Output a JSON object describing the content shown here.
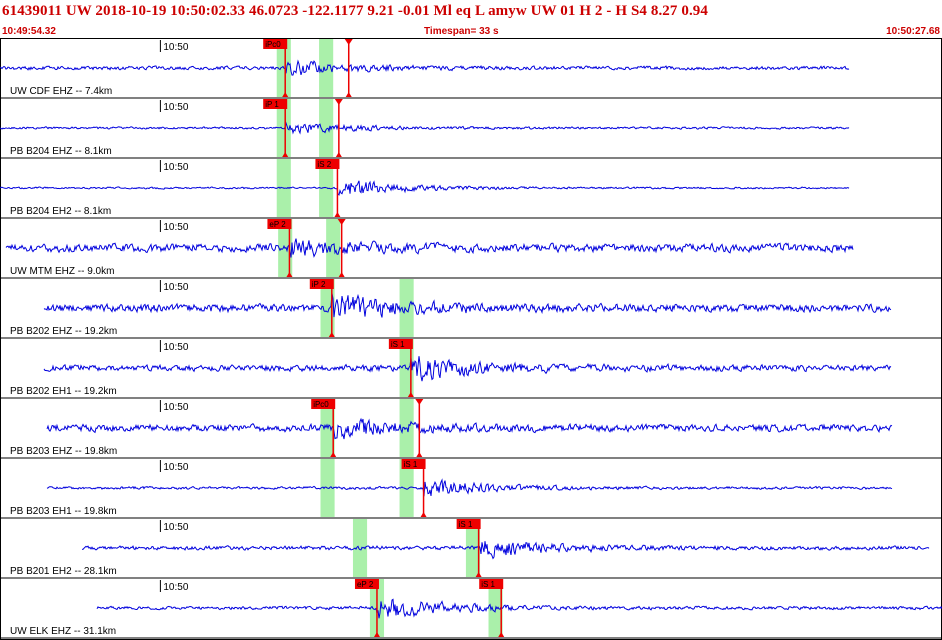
{
  "header": {
    "title": "61439011 UW 2018-10-19 10:50:02.33    46.0723 -122.1177    9.21 -0.01 Ml   eq   L amyw      UW 01   H    2   -   H S4      8.27   0.94",
    "start_time": "10:49:54.32",
    "timespan": "Timespan=  33 s",
    "end_time": "10:50:27.68"
  },
  "colors": {
    "trace": "#0000dd",
    "pick_flag": "#ee0000",
    "window": "#aaf0aa",
    "header_text": "#cc0000",
    "grid": "#000000"
  },
  "chart_data": {
    "type": "line",
    "x_unit": "seconds",
    "xlim": [
      0,
      33.36
    ],
    "tick_label": "10:50",
    "tick_time": 5.68,
    "channels": [
      {
        "label": "UW CDF EHZ -- 7.4km",
        "data_start": 0,
        "data_end": 30.05,
        "amp": 0.08,
        "burst": 0.35,
        "windows": [
          [
            9.8,
            10.3
          ],
          [
            11.3,
            11.8
          ]
        ],
        "picks": [
          {
            "label": "iPc0",
            "t": 10.1
          },
          {
            "label": "S",
            "t": 12.35
          }
        ]
      },
      {
        "label": "PB B204 EHZ -- 8.1km",
        "data_start": 0,
        "data_end": 30.05,
        "amp": 0.05,
        "burst": 0.28,
        "windows": [
          [
            9.8,
            10.3
          ],
          [
            11.3,
            11.8
          ]
        ],
        "picks": [
          {
            "label": "iP 1",
            "t": 10.1
          },
          {
            "label": "S",
            "t": 12.0
          }
        ]
      },
      {
        "label": "PB B204 EH2 -- 8.1km",
        "data_start": 0,
        "data_end": 30.05,
        "amp": 0.04,
        "burst": 0.42,
        "windows": [
          [
            9.8,
            10.3
          ],
          [
            11.3,
            11.8
          ]
        ],
        "picks": [
          {
            "label": "iS 2",
            "t": 11.95
          }
        ]
      },
      {
        "label": "UW MTM EHZ -- 9.0km",
        "data_start": 0.2,
        "data_end": 30.2,
        "amp": 0.18,
        "burst": 0.32,
        "windows": [
          [
            9.85,
            10.35
          ],
          [
            11.55,
            12.05
          ]
        ],
        "picks": [
          {
            "label": "eP 2",
            "t": 10.25
          },
          {
            "label": "S",
            "t": 12.1
          }
        ]
      },
      {
        "label": "PB B202 EHZ -- 19.2km",
        "data_start": 1.55,
        "data_end": 31.55,
        "amp": 0.18,
        "burst": 0.55,
        "windows": [
          [
            11.35,
            11.85
          ],
          [
            14.15,
            14.65
          ]
        ],
        "picks": [
          {
            "label": "iP 2",
            "t": 11.75
          }
        ]
      },
      {
        "label": "PB B202 EH1 -- 19.2km",
        "data_start": 1.55,
        "data_end": 31.55,
        "amp": 0.14,
        "burst": 0.55,
        "windows": [
          [
            14.15,
            14.65
          ]
        ],
        "picks": [
          {
            "label": "iS 1",
            "t": 14.55
          }
        ]
      },
      {
        "label": "PB B203 EHZ -- 19.8km",
        "data_start": 1.65,
        "data_end": 31.6,
        "amp": 0.16,
        "burst": 0.42,
        "windows": [
          [
            11.35,
            11.85
          ],
          [
            14.15,
            14.65
          ]
        ],
        "picks": [
          {
            "label": "iPc0",
            "t": 11.8
          },
          {
            "label": "S",
            "t": 14.85
          }
        ]
      },
      {
        "label": "PB B203 EH1 -- 19.8km",
        "data_start": 1.65,
        "data_end": 31.6,
        "amp": 0.06,
        "burst": 0.45,
        "windows": [
          [
            11.35,
            11.85
          ],
          [
            14.15,
            14.65
          ]
        ],
        "picks": [
          {
            "label": "iS 1",
            "t": 15.0
          }
        ]
      },
      {
        "label": "PB B201 EH2 -- 28.1km",
        "data_start": 2.9,
        "data_end": 32.9,
        "amp": 0.09,
        "burst": 0.45,
        "windows": [
          [
            12.5,
            13.0
          ],
          [
            16.5,
            17.0
          ]
        ],
        "picks": [
          {
            "label": "iS 1",
            "t": 16.95
          }
        ]
      },
      {
        "label": "UW ELK EHZ -- 31.1km",
        "data_start": 3.45,
        "data_end": 33.36,
        "amp": 0.07,
        "burst": 0.55,
        "windows": [
          [
            13.1,
            13.6
          ],
          [
            17.3,
            17.8
          ]
        ],
        "picks": [
          {
            "label": "eP 2",
            "t": 13.35
          },
          {
            "label": "iS 1",
            "t": 17.75
          }
        ]
      }
    ]
  }
}
